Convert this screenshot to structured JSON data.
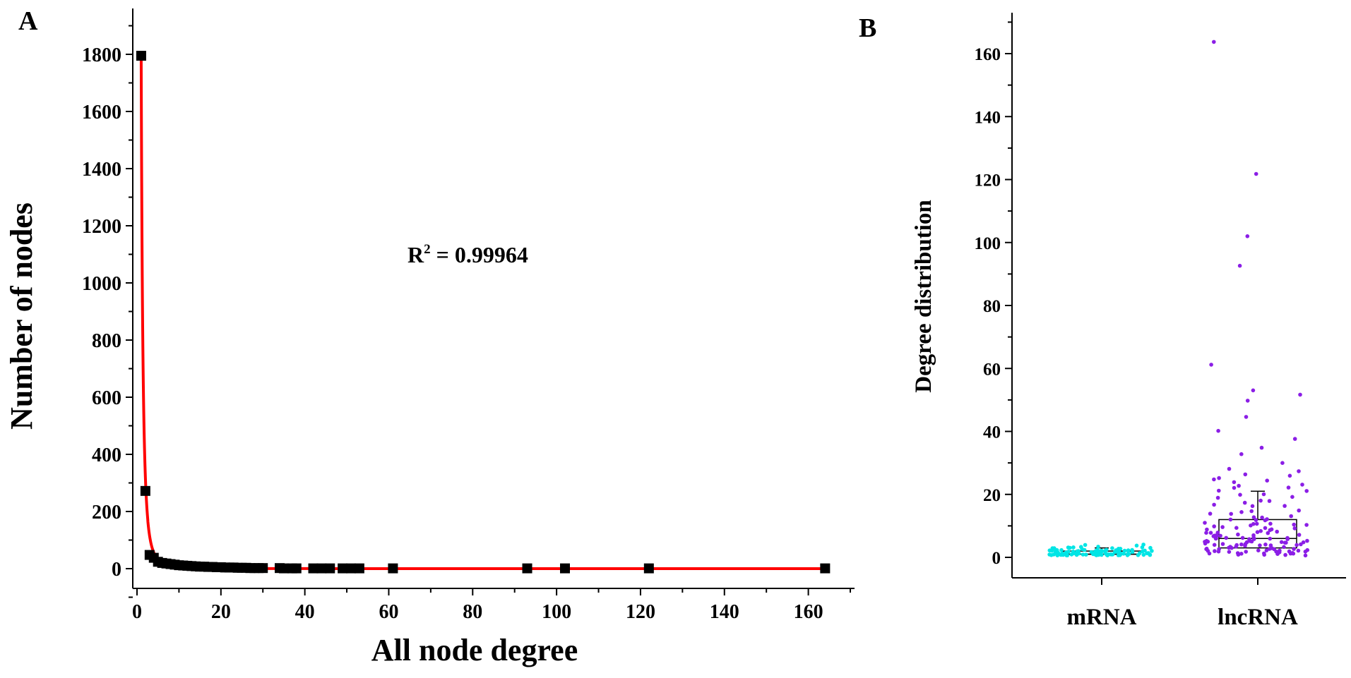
{
  "chart_data": [
    {
      "panel": "A",
      "type": "scatter",
      "xlabel": "All node degree",
      "ylabel": "Number of nodes",
      "xlim": [
        0,
        170
      ],
      "ylim": [
        -100,
        1950
      ],
      "xticks": [
        0,
        20,
        40,
        60,
        80,
        100,
        120,
        140,
        160
      ],
      "yticks": [
        0,
        200,
        400,
        600,
        800,
        1000,
        1200,
        1400,
        1600,
        1800
      ],
      "annotation": {
        "base": "R",
        "sup": "2",
        "text": " = 0.99964"
      },
      "points": [
        [
          1,
          1795
        ],
        [
          2,
          272
        ],
        [
          3,
          48
        ],
        [
          4,
          38
        ],
        [
          5,
          24
        ],
        [
          6,
          20
        ],
        [
          7,
          18
        ],
        [
          8,
          16
        ],
        [
          9,
          14
        ],
        [
          10,
          12
        ],
        [
          11,
          11
        ],
        [
          12,
          10
        ],
        [
          13,
          9
        ],
        [
          14,
          8
        ],
        [
          15,
          7
        ],
        [
          16,
          7
        ],
        [
          17,
          6
        ],
        [
          18,
          6
        ],
        [
          19,
          5
        ],
        [
          20,
          5
        ],
        [
          21,
          4
        ],
        [
          22,
          4
        ],
        [
          23,
          4
        ],
        [
          24,
          3
        ],
        [
          25,
          3
        ],
        [
          26,
          3
        ],
        [
          27,
          2
        ],
        [
          28,
          2
        ],
        [
          29,
          2
        ],
        [
          30,
          2
        ],
        [
          34,
          2
        ],
        [
          35,
          1
        ],
        [
          37,
          1
        ],
        [
          38,
          1
        ],
        [
          42,
          1
        ],
        [
          44,
          1
        ],
        [
          46,
          1
        ],
        [
          49,
          1
        ],
        [
          51,
          1
        ],
        [
          53,
          1
        ],
        [
          61,
          1
        ],
        [
          93,
          1
        ],
        [
          102,
          1
        ],
        [
          122,
          1
        ],
        [
          164,
          1
        ]
      ],
      "fit_curve": {
        "color": "#ff0000",
        "model": "power",
        "a": 1795,
        "b": 2.5
      },
      "marker_color": "#000000"
    },
    {
      "panel": "B",
      "type": "box",
      "ylabel": "Degree distribution",
      "ylim": [
        0,
        170
      ],
      "yticks": [
        0,
        20,
        40,
        60,
        80,
        100,
        120,
        140,
        160
      ],
      "categories": [
        "mRNA",
        "lncRNA"
      ],
      "series": [
        {
          "name": "mRNA",
          "color": "#00e5e5",
          "box": {
            "q1": 1,
            "median": 1,
            "q3": 2,
            "whisker_low": 1,
            "whisker_high": 3
          },
          "points": [
            1,
            1,
            1,
            1,
            1,
            1,
            1,
            1,
            1,
            1,
            1,
            1,
            1,
            1,
            1,
            1,
            1,
            1,
            1,
            1,
            1,
            1,
            1,
            1,
            1,
            1,
            1,
            1,
            1,
            1,
            1,
            1,
            1,
            1,
            1,
            1,
            1,
            1,
            1,
            1,
            1,
            1,
            1,
            1,
            1,
            1,
            1,
            1,
            1,
            1,
            1,
            1,
            1,
            1,
            1,
            1,
            1,
            1,
            1,
            1,
            2,
            2,
            2,
            2,
            2,
            2,
            2,
            2,
            2,
            2,
            2,
            2,
            2,
            2,
            2,
            2,
            2,
            2,
            2,
            2,
            2,
            2,
            2,
            2,
            2,
            2,
            2,
            2,
            2,
            2,
            2,
            2,
            2,
            2,
            2,
            3,
            3,
            3,
            3,
            3,
            3,
            3,
            3,
            3,
            3,
            3,
            3,
            3,
            4,
            4,
            4
          ]
        },
        {
          "name": "lncRNA",
          "color": "#8b1ee6",
          "box": {
            "q1": 3,
            "median": 6,
            "q3": 12,
            "whisker_low": 1,
            "whisker_high": 21
          },
          "points": [
            164,
            122,
            102,
            93,
            61,
            53,
            52,
            50,
            45,
            40,
            38,
            35,
            33,
            30,
            28,
            27,
            26,
            26,
            25,
            25,
            24,
            24,
            23,
            23,
            22,
            22,
            21,
            21,
            20,
            20,
            19,
            19,
            18,
            18,
            17,
            17,
            16,
            16,
            15,
            15,
            14,
            14,
            14,
            13,
            13,
            13,
            12,
            12,
            12,
            12,
            11,
            11,
            11,
            11,
            10,
            10,
            10,
            10,
            10,
            9,
            9,
            9,
            9,
            9,
            9,
            8,
            8,
            8,
            8,
            8,
            8,
            8,
            7,
            7,
            7,
            7,
            7,
            7,
            7,
            7,
            6,
            6,
            6,
            6,
            6,
            6,
            6,
            6,
            6,
            6,
            5,
            5,
            5,
            5,
            5,
            5,
            5,
            5,
            5,
            5,
            5,
            4,
            4,
            4,
            4,
            4,
            4,
            4,
            4,
            4,
            4,
            4,
            4,
            3,
            3,
            3,
            3,
            3,
            3,
            3,
            3,
            3,
            3,
            3,
            3,
            3,
            2,
            2,
            2,
            2,
            2,
            2,
            2,
            2,
            2,
            2,
            2,
            2,
            2,
            2,
            1,
            1,
            1,
            1,
            1,
            1,
            1,
            1,
            1,
            1,
            1,
            1
          ]
        }
      ]
    }
  ]
}
